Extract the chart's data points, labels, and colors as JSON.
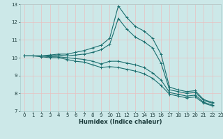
{
  "xlabel": "Humidex (Indice chaleur)",
  "xlim": [
    -0.5,
    23
  ],
  "ylim": [
    7,
    13
  ],
  "yticks": [
    7,
    8,
    9,
    10,
    11,
    12,
    13
  ],
  "xticks": [
    0,
    1,
    2,
    3,
    4,
    5,
    6,
    7,
    8,
    9,
    10,
    11,
    12,
    13,
    14,
    15,
    16,
    17,
    18,
    19,
    20,
    21,
    22,
    23
  ],
  "background_color": "#cce8e8",
  "grid_color": "#b8d8d8",
  "line_color": "#1a6e6e",
  "lines": [
    [
      10.1,
      10.1,
      10.1,
      10.15,
      10.2,
      10.2,
      10.3,
      10.4,
      10.55,
      10.7,
      11.1,
      12.9,
      12.25,
      11.75,
      11.5,
      11.1,
      10.2,
      8.35,
      8.2,
      8.1,
      8.15,
      7.65,
      7.5
    ],
    [
      10.1,
      10.1,
      10.1,
      10.1,
      10.15,
      10.1,
      10.15,
      10.2,
      10.3,
      10.45,
      10.75,
      12.2,
      11.6,
      11.15,
      10.9,
      10.55,
      9.7,
      8.2,
      8.1,
      8.0,
      8.05,
      7.6,
      7.45
    ],
    [
      10.1,
      10.1,
      10.1,
      10.05,
      10.05,
      10.0,
      9.95,
      9.9,
      9.8,
      9.65,
      9.8,
      9.8,
      9.7,
      9.6,
      9.45,
      9.15,
      8.75,
      8.05,
      7.95,
      7.85,
      7.9,
      7.5,
      7.35
    ],
    [
      10.1,
      10.1,
      10.05,
      10.0,
      10.0,
      9.9,
      9.8,
      9.75,
      9.6,
      9.45,
      9.5,
      9.45,
      9.35,
      9.25,
      9.1,
      8.85,
      8.45,
      7.95,
      7.85,
      7.75,
      7.8,
      7.45,
      7.3
    ]
  ]
}
